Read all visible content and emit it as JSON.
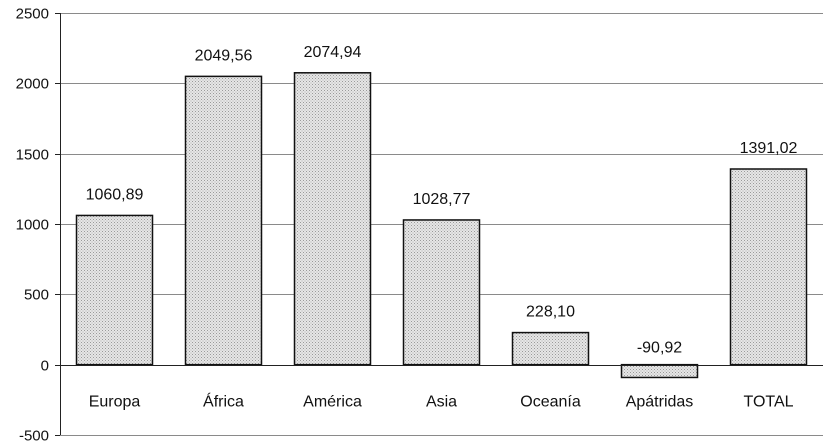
{
  "chart_data": {
    "type": "bar",
    "title": "",
    "xlabel": "",
    "ylabel": "",
    "categories": [
      "Europa",
      "África",
      "América",
      "Asia",
      "Oceanía",
      "Apátridas",
      "TOTAL"
    ],
    "values": [
      1060.89,
      2049.56,
      2074.94,
      1028.77,
      228.1,
      -90.92,
      1391.02
    ],
    "value_labels": [
      "1060,89",
      "2049,56",
      "2074,94",
      "1028,77",
      "228,10",
      "-90,92",
      "1391,02"
    ],
    "ylim": [
      -500,
      2500
    ],
    "yticks": [
      -500,
      0,
      500,
      1000,
      1500,
      2000,
      2500
    ],
    "ytick_labels": [
      "-500",
      "0",
      "500",
      "1000",
      "1500",
      "2000",
      "2500"
    ],
    "grid": true,
    "legend": "none",
    "bar_color": "#d4d4d4"
  }
}
